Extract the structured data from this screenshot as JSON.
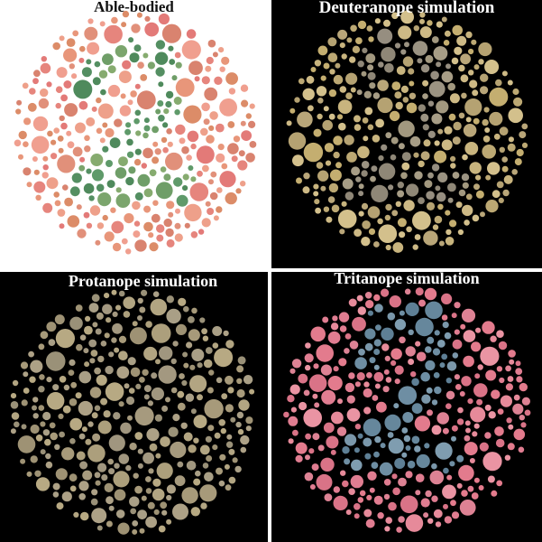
{
  "panels": [
    {
      "id": "able",
      "title": "Able-bodied",
      "background": "#ffffff",
      "title_color": "#111111",
      "background_dots": [
        "#e6857d",
        "#e1907a",
        "#eea08a",
        "#d9836f",
        "#f09f8f",
        "#e37a78",
        "#e8967a",
        "#dc8c68"
      ],
      "digit_dots": [
        "#5f9a6a",
        "#6f9e68",
        "#7ba56d",
        "#548f62",
        "#86ab6f",
        "#4f8a5c"
      ]
    },
    {
      "id": "deut",
      "title": "Deuteranope simulation",
      "background": "#000000",
      "title_color": "#ffffff",
      "background_dots": [
        "#c8b47e",
        "#bca873",
        "#d3c08c",
        "#b9a679",
        "#c4ae70",
        "#cdb985",
        "#b5a272"
      ],
      "digit_dots": [
        "#9b9382",
        "#8f8777",
        "#a79d86",
        "#968e80",
        "#a2987f"
      ]
    },
    {
      "id": "prot",
      "title": "Protanope simulation",
      "background": "#000000",
      "title_color": "#ffffff",
      "background_dots": [
        "#a79a7a",
        "#b2a582",
        "#9e9274",
        "#a99f86",
        "#b7a983",
        "#9a9178",
        "#ada186"
      ],
      "digit_dots": [
        "#a69a7e",
        "#a39880",
        "#ac9f7c",
        "#a0967f"
      ]
    },
    {
      "id": "trit",
      "title": "Tritanope simulation",
      "background": "#000000",
      "title_color": "#ffffff",
      "background_dots": [
        "#e07d91",
        "#e68a9a",
        "#d97387",
        "#ea94a3",
        "#dd8294",
        "#e37b8d"
      ],
      "digit_dots": [
        "#6e8ea3",
        "#7a97aa",
        "#66879c",
        "#7f9db0",
        "#5e7f95"
      ]
    }
  ]
}
